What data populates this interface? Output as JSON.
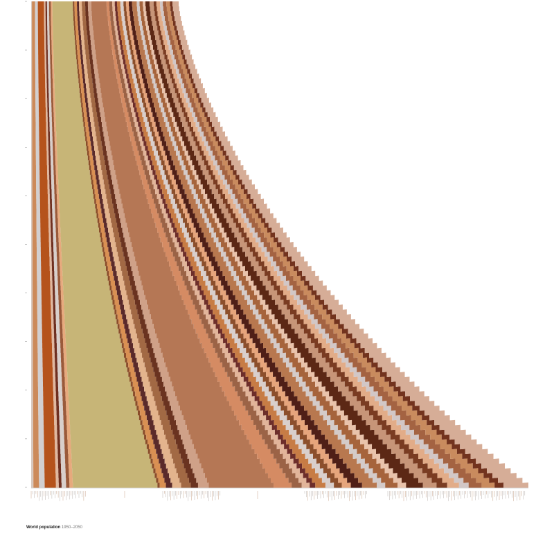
{
  "caption": {
    "title": "World population",
    "range": "1950–2050"
  },
  "chart_data": {
    "type": "area",
    "title": "World population 1950–2050",
    "xlabel": "",
    "ylabel": "",
    "x_range": [
      1950,
      2050
    ],
    "orientation": "years run top (1950) to bottom (2050); population stacked horizontally",
    "grid": false,
    "legend": "none",
    "series_bands": [
      {
        "color": "#d8c9c0",
        "values_1950": 0.3,
        "values_2050": 0.4
      },
      {
        "color": "#cc8a5a",
        "values_1950": 1.2,
        "values_2050": 1.0
      },
      {
        "color": "#d2cfd0",
        "values_1950": 1.1,
        "values_2050": 1.0
      },
      {
        "color": "#b5531c",
        "values_1950": 2.4,
        "values_2050": 2.0
      },
      {
        "color": "#e0b8a0",
        "values_1950": 0.6,
        "values_2050": 0.5
      },
      {
        "color": "#6f2f1f",
        "values_1950": 0.6,
        "values_2050": 0.5
      },
      {
        "color": "#d8cfcb",
        "values_1950": 0.8,
        "values_2050": 0.8
      },
      {
        "color": "#9a5a3a",
        "values_1950": 0.7,
        "values_2050": 0.6
      },
      {
        "color": "#e7a97d",
        "values_1950": 0.6,
        "values_2050": 0.6
      },
      {
        "color": "#c7b577",
        "values_1950": 8.0,
        "values_2050": 15.0
      },
      {
        "color": "#8a4d2a",
        "values_1950": 0.6,
        "values_2050": 0.4
      },
      {
        "color": "#d99053",
        "values_1950": 1.0,
        "values_2050": 1.1
      },
      {
        "color": "#5a2a2a",
        "values_1950": 0.8,
        "values_2050": 1.1
      },
      {
        "color": "#e3b48d",
        "values_1950": 1.1,
        "values_2050": 1.6
      },
      {
        "color": "#a26944",
        "values_1950": 1.3,
        "values_2050": 1.7
      },
      {
        "color": "#6a3320",
        "values_1950": 1.1,
        "values_2050": 1.3
      },
      {
        "color": "#cfa188",
        "values_1950": 1.3,
        "values_2050": 1.9
      },
      {
        "color": "#b57755",
        "values_1950": 6.0,
        "values_2050": 11.5
      },
      {
        "color": "#d58b63",
        "values_1950": 1.0,
        "values_2050": 3.2
      },
      {
        "color": "#9b6346",
        "values_1950": 1.2,
        "values_2050": 1.8
      },
      {
        "color": "#e2b59a",
        "values_1950": 1.0,
        "values_2050": 1.4
      },
      {
        "color": "#6d2e2a",
        "values_1950": 0.9,
        "values_2050": 1.0
      },
      {
        "color": "#c77c45",
        "values_1950": 1.3,
        "values_2050": 1.8
      },
      {
        "color": "#d9cfcc",
        "values_1950": 1.2,
        "values_2050": 1.5
      },
      {
        "color": "#8c4f2c",
        "values_1950": 1.0,
        "values_2050": 1.4
      },
      {
        "color": "#e6a57c",
        "values_1950": 1.1,
        "values_2050": 1.6
      },
      {
        "color": "#4f1f17",
        "values_1950": 1.3,
        "values_2050": 2.0
      },
      {
        "color": "#b8784f",
        "values_1950": 1.8,
        "values_2050": 2.6
      },
      {
        "color": "#d4cbc9",
        "values_1950": 1.1,
        "values_2050": 1.5
      },
      {
        "color": "#a6643c",
        "values_1950": 1.3,
        "values_2050": 2.2
      },
      {
        "color": "#e9c3ab",
        "values_1950": 1.0,
        "values_2050": 1.5
      },
      {
        "color": "#5c2815",
        "values_1950": 1.6,
        "values_2050": 3.0
      },
      {
        "color": "#c79578",
        "values_1950": 1.6,
        "values_2050": 2.4
      },
      {
        "color": "#7a3c22",
        "values_1950": 1.1,
        "values_2050": 1.9
      },
      {
        "color": "#e2ac88",
        "values_1950": 1.4,
        "values_2050": 2.1
      },
      {
        "color": "#d2c7c6",
        "values_1950": 1.1,
        "values_2050": 1.7
      },
      {
        "color": "#a46342",
        "values_1950": 1.4,
        "values_2050": 2.3
      },
      {
        "color": "#c98b5e",
        "values_1950": 1.4,
        "values_2050": 2.3
      },
      {
        "color": "#72331e",
        "values_1950": 1.0,
        "values_2050": 1.6
      },
      {
        "color": "#d6ad97",
        "values_1950": 2.4,
        "values_2050": 4.4
      }
    ],
    "note": "values are relative band widths (share units) at start and end of range"
  }
}
